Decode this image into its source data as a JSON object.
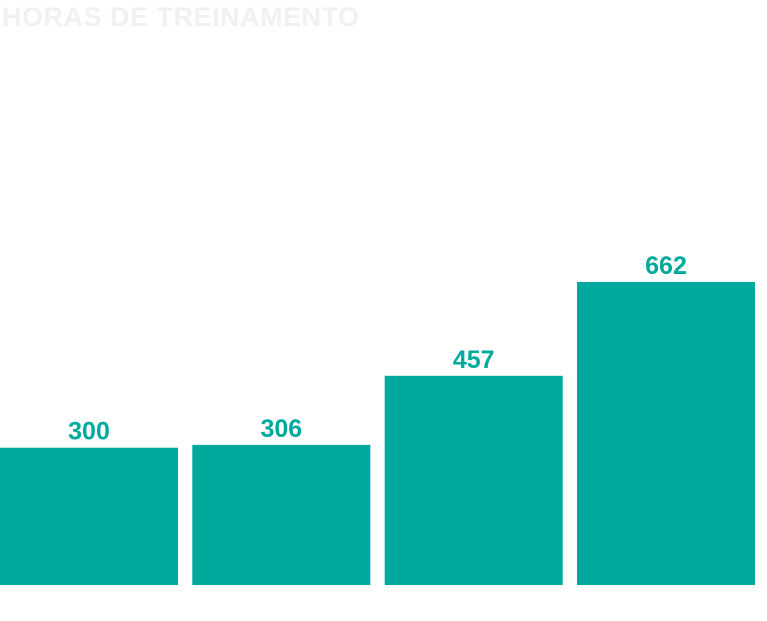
{
  "chart_data": {
    "type": "bar",
    "title": "HORAS DE TREINAMENTO",
    "categories": [
      "",
      "",
      "",
      ""
    ],
    "values": [
      300,
      306,
      457,
      662
    ],
    "data_labels": [
      "300",
      "306",
      "457",
      "662"
    ],
    "xlabel": "",
    "ylabel": "",
    "ylim": [
      0,
      662
    ],
    "grid": false,
    "legend": "none",
    "colors": {
      "bar": "#00a99d",
      "label": "#00a99d",
      "title": "#f1f1f1",
      "background": "#ffffff"
    }
  }
}
